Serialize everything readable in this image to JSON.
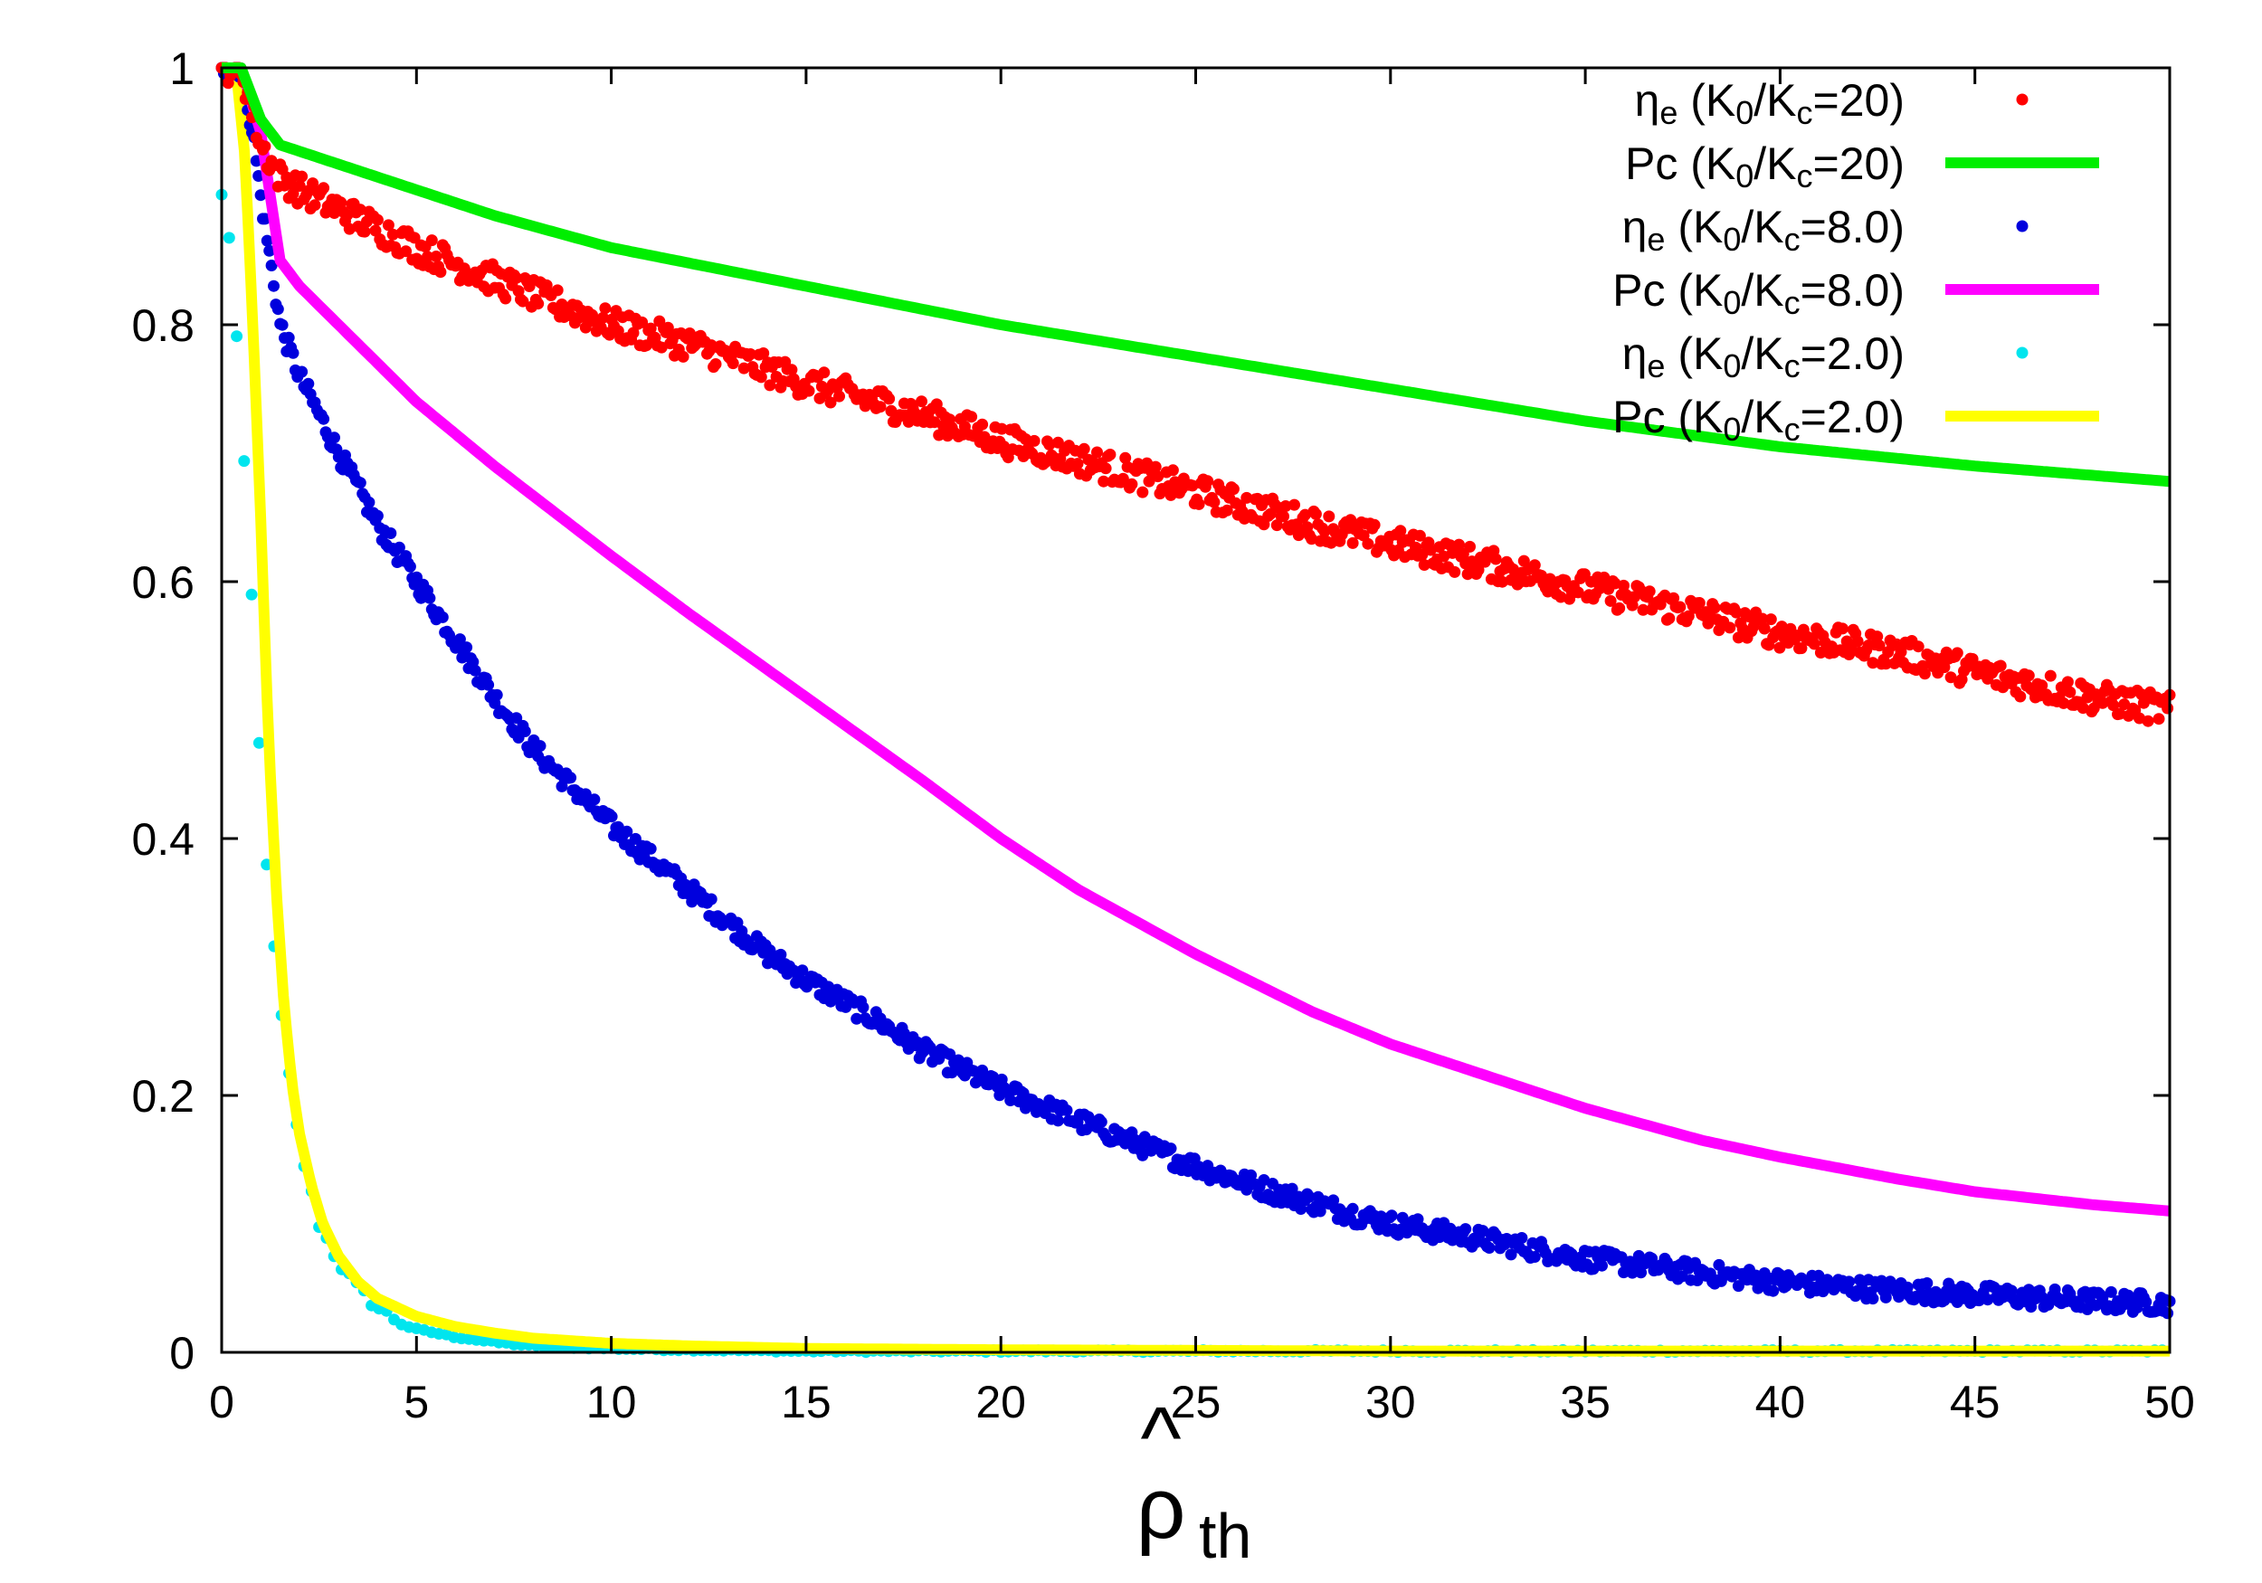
{
  "chart_data": {
    "type": "scatter",
    "title": "",
    "xlabel": "ρ̂th",
    "xlabel_parts": {
      "hat": "^",
      "base": "ρ",
      "sub": "th"
    },
    "ylabel": "",
    "xlim": [
      0,
      50
    ],
    "ylim": [
      0,
      1
    ],
    "xticks": [
      0,
      5,
      10,
      15,
      20,
      25,
      30,
      35,
      40,
      45,
      50
    ],
    "yticks": [
      0,
      0.2,
      0.4,
      0.6,
      0.8,
      1
    ],
    "xtick_labels": [
      "0",
      "5",
      "10",
      "15",
      "20",
      "25",
      "30",
      "35",
      "40",
      "45",
      "50"
    ],
    "ytick_labels": [
      "0",
      "0.2",
      "0.4",
      "0.6",
      "0.8",
      "1"
    ],
    "grid": false,
    "legend_position": "top-right",
    "series": [
      {
        "name": "ηe (K0/Kc=20)",
        "label_parts": {
          "sym": "η",
          "symsub": "e",
          "pre": " (K",
          "sub1": "0",
          "mid": "/K",
          "sub2": "c",
          "post": "=20)"
        },
        "kind": "points",
        "color": "#ff0000",
        "x": [
          0,
          0.5,
          1,
          1.5,
          2,
          3,
          5,
          7,
          10,
          12,
          15,
          18,
          20,
          22,
          25,
          28,
          30,
          33,
          35,
          38,
          40,
          43,
          45,
          48,
          50
        ],
        "y": [
          1.0,
          1.0,
          0.94,
          0.915,
          0.905,
          0.89,
          0.86,
          0.835,
          0.8,
          0.785,
          0.755,
          0.73,
          0.71,
          0.695,
          0.67,
          0.645,
          0.63,
          0.61,
          0.595,
          0.575,
          0.56,
          0.545,
          0.53,
          0.51,
          0.5
        ]
      },
      {
        "name": "Pc (K0/Kc=20)",
        "label_parts": {
          "sym": "Pc",
          "symsub": "",
          "pre": " (K",
          "sub1": "0",
          "mid": "/K",
          "sub2": "c",
          "post": "=20)"
        },
        "kind": "line",
        "color": "#00ee00",
        "x": [
          0,
          0.5,
          1,
          1.5,
          2,
          3,
          5,
          7,
          10,
          15,
          20,
          25,
          30,
          35,
          40,
          45,
          50
        ],
        "y": [
          1.0,
          1.0,
          0.96,
          0.94,
          0.935,
          0.925,
          0.905,
          0.885,
          0.86,
          0.83,
          0.8,
          0.775,
          0.75,
          0.725,
          0.705,
          0.69,
          0.678
        ]
      },
      {
        "name": "ηe (K0/Kc=8.0)",
        "label_parts": {
          "sym": "η",
          "symsub": "e",
          "pre": " (K",
          "sub1": "0",
          "mid": "/K",
          "sub2": "c",
          "post": "=8.0)"
        },
        "kind": "points",
        "color": "#0000dd",
        "x": [
          0,
          0.5,
          0.8,
          1,
          1.5,
          2,
          3,
          4,
          5,
          6,
          7,
          8,
          9,
          10,
          12,
          14,
          15,
          17,
          18,
          20,
          22,
          25,
          27,
          30,
          32,
          35,
          38,
          40,
          42,
          45,
          48,
          50
        ],
        "y": [
          1.0,
          1.0,
          0.95,
          0.9,
          0.8,
          0.76,
          0.7,
          0.645,
          0.6,
          0.555,
          0.51,
          0.47,
          0.44,
          0.41,
          0.36,
          0.31,
          0.29,
          0.255,
          0.235,
          0.205,
          0.18,
          0.145,
          0.125,
          0.1,
          0.09,
          0.073,
          0.062,
          0.055,
          0.05,
          0.045,
          0.04,
          0.038
        ]
      },
      {
        "name": "Pc (K0/Kc=8.0)",
        "label_parts": {
          "sym": "Pc",
          "symsub": "",
          "pre": " (K",
          "sub1": "0",
          "mid": "/K",
          "sub2": "c",
          "post": "=8.0)"
        },
        "kind": "line",
        "color": "#ff00ff",
        "x": [
          0,
          0.5,
          1,
          1.5,
          2,
          3,
          5,
          7,
          10,
          12,
          15,
          18,
          20,
          22,
          25,
          28,
          30,
          33,
          35,
          38,
          40,
          43,
          45,
          48,
          50
        ],
        "y": [
          1.0,
          1.0,
          0.95,
          0.85,
          0.83,
          0.8,
          0.74,
          0.69,
          0.62,
          0.575,
          0.51,
          0.445,
          0.4,
          0.36,
          0.31,
          0.265,
          0.24,
          0.21,
          0.19,
          0.165,
          0.152,
          0.135,
          0.125,
          0.115,
          0.11
        ]
      },
      {
        "name": "ηe (K0/Kc=2.0)",
        "label_parts": {
          "sym": "η",
          "symsub": "e",
          "pre": " (K",
          "sub1": "0",
          "mid": "/K",
          "sub2": "c",
          "post": "=2.0)"
        },
        "kind": "points",
        "color": "#00e5ee",
        "x": [
          0,
          0.25,
          0.5,
          0.75,
          1.0,
          1.25,
          1.5,
          1.75,
          2.0,
          2.25,
          2.5,
          3,
          3.5,
          4,
          4.5,
          5,
          6,
          7,
          8,
          10,
          12,
          15,
          20,
          30,
          40,
          50
        ],
        "y": [
          0.9,
          0.86,
          0.73,
          0.6,
          0.45,
          0.34,
          0.27,
          0.21,
          0.16,
          0.13,
          0.1,
          0.07,
          0.05,
          0.035,
          0.025,
          0.018,
          0.012,
          0.008,
          0.005,
          0.003,
          0.002,
          0.001,
          0.001,
          0.001,
          0.001,
          0.001
        ]
      },
      {
        "name": "Pc (K0/Kc=2.0)",
        "label_parts": {
          "sym": "Pc",
          "symsub": "",
          "pre": " (K",
          "sub1": "0",
          "mid": "/K",
          "sub2": "c",
          "post": "=2.0)"
        },
        "kind": "line",
        "color": "#ffff00",
        "x": [
          0,
          0.4,
          0.6,
          0.8,
          1.0,
          1.2,
          1.4,
          1.6,
          1.8,
          2.0,
          2.3,
          2.6,
          3.0,
          3.5,
          4,
          5,
          6,
          7,
          8,
          10,
          12,
          15,
          20,
          30,
          50
        ],
        "y": [
          1.0,
          0.99,
          0.93,
          0.8,
          0.65,
          0.48,
          0.36,
          0.27,
          0.21,
          0.17,
          0.13,
          0.1,
          0.075,
          0.055,
          0.042,
          0.028,
          0.02,
          0.015,
          0.011,
          0.007,
          0.005,
          0.003,
          0.002,
          0.001,
          0.001
        ]
      }
    ]
  }
}
